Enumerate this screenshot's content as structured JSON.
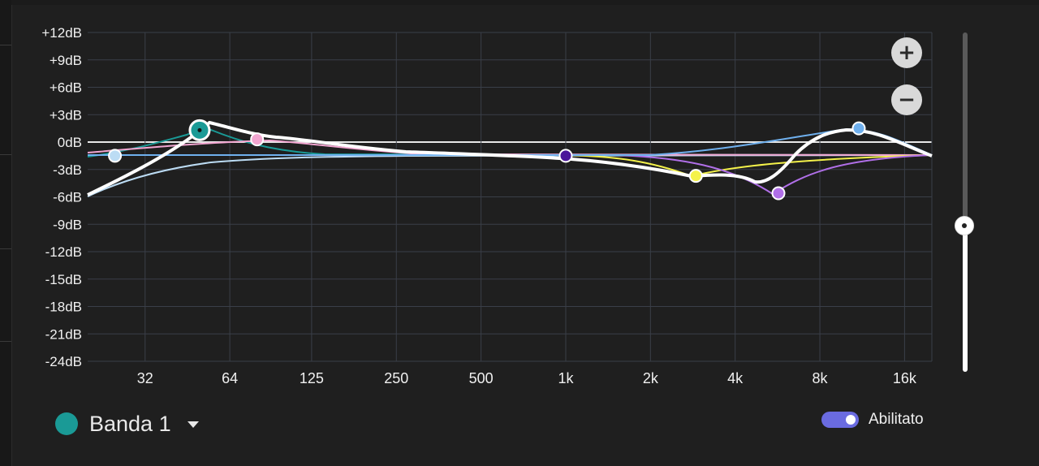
{
  "graph": {
    "y_axis": {
      "unit": "dB",
      "ticks": [
        "+12dB",
        "+9dB",
        "+6dB",
        "+3dB",
        "0dB",
        "-3dB",
        "-6dB",
        "-9dB",
        "-12dB",
        "-15dB",
        "-18dB",
        "-21dB",
        "-24dB"
      ],
      "range": [
        -24,
        12
      ]
    },
    "x_axis": {
      "scale": "log",
      "ticks": [
        "32",
        "64",
        "125",
        "250",
        "500",
        "1k",
        "2k",
        "4k",
        "8k",
        "16k"
      ],
      "tick_hz": [
        32,
        64,
        125,
        250,
        500,
        1000,
        2000,
        4000,
        8000,
        16000
      ],
      "range_hz": [
        20,
        20000
      ]
    },
    "bands": [
      {
        "id": 1,
        "color": "#1a9a96",
        "freq_hz": 50,
        "gain_db": 1.3,
        "selected": true
      },
      {
        "id": 2,
        "color": "#bcdcf4",
        "freq_hz": 25,
        "gain_db": -1.5
      },
      {
        "id": 3,
        "color": "#f2a6d1",
        "freq_hz": 80,
        "gain_db": 0.3
      },
      {
        "id": 4,
        "color": "#4a159a",
        "freq_hz": 1000,
        "gain_db": -1.5
      },
      {
        "id": 5,
        "color": "#f4f24a",
        "freq_hz": 2900,
        "gain_db": -3.7
      },
      {
        "id": 6,
        "color": "#b06fe8",
        "freq_hz": 5700,
        "gain_db": -5.6
      },
      {
        "id": 7,
        "color": "#6fb0ee",
        "freq_hz": 11000,
        "gain_db": 1.5
      }
    ],
    "grid": true
  },
  "zoom": {
    "in_symbol": "+",
    "out_symbol": "−"
  },
  "band_selector": {
    "label": "Banda 1",
    "color": "#1a9a96"
  },
  "toggle": {
    "label": "Abilitato",
    "on": true,
    "color": "#6a6be0"
  },
  "slider": {
    "fraction_from_bottom": 0.43
  }
}
